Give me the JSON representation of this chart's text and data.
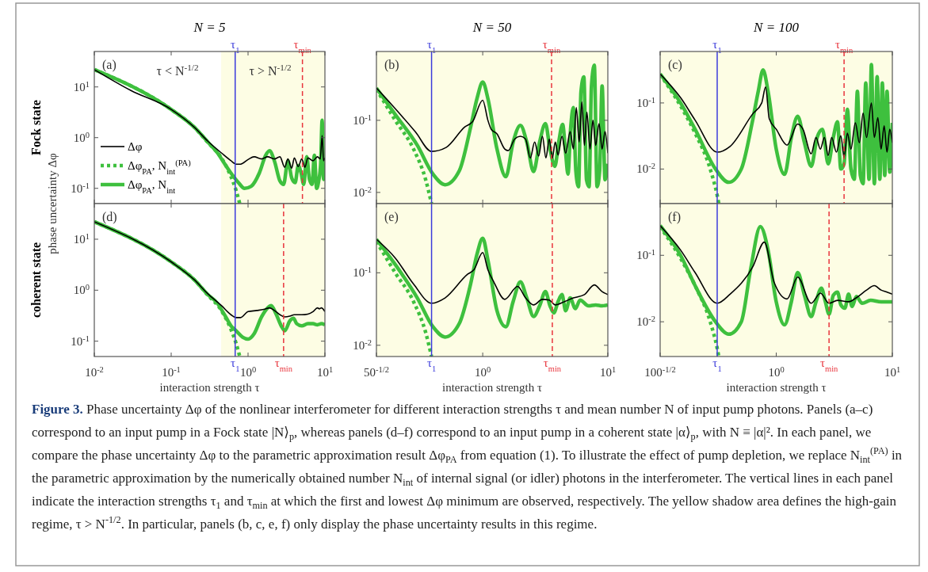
{
  "chart_data": [
    {
      "type": "line",
      "title": "N = 5",
      "ylabel": "Fock state",
      "legend": "bottom left",
      "tick_labels": "y",
      "log": "xy",
      "xlim": [
        0.01,
        10
      ],
      "ylim": [
        0.05,
        50
      ],
      "xticks": [
        0.01,
        0.1,
        1,
        10
      ],
      "yticks": [
        {
          "value": 0.1,
          "label": "10$^{-1}$"
        },
        {
          "value": 1,
          "label": "10$^{0}$"
        },
        {
          "value": 10,
          "label": "10$^{1}$"
        }
      ],
      "annotations": [
        "(a)",
        "τ < N$^{-1/2}$",
        "τ > N$^{-1/2}$",
        "phase uncertainty Δφ"
      ],
      "bands": [
        {
          "axis": "x",
          "from": 0.447,
          "to": 10,
          "color": "#fdfde4"
        }
      ],
      "ref_lines": [
        {
          "axis": "x",
          "value": 0.68,
          "label": "τ$_{1}$",
          "color": "#3b3bdb",
          "line_style": "solid"
        },
        {
          "axis": "x",
          "value": 5.1,
          "label": "τ$_{min}$",
          "color": "#e8343c",
          "line_style": "dashed"
        }
      ],
      "series": [
        {
          "name": "Δφ",
          "color": "#000000",
          "line_style": "solid",
          "x": [
            0.01,
            0.03,
            0.1,
            0.2,
            0.3,
            0.45,
            0.6,
            0.7,
            0.8,
            1.0,
            1.2,
            1.5,
            1.8,
            2.2,
            2.6,
            3,
            3.3,
            3.7,
            4,
            4.5,
            5,
            5.5,
            6,
            7,
            8,
            8.7,
            9.2,
            9.6,
            10
          ],
          "values": [
            22,
            8.5,
            3.6,
            1.6,
            0.85,
            0.5,
            0.35,
            0.3,
            0.3,
            0.37,
            0.42,
            0.38,
            0.42,
            0.38,
            0.42,
            0.26,
            0.38,
            0.25,
            0.4,
            0.27,
            0.38,
            0.26,
            0.4,
            0.35,
            0.42,
            0.38,
            1.1,
            0.35,
            0.4
          ]
        },
        {
          "name": "Δφ$_{PA}$, N$_{int}$$^{(PA)}$",
          "color": "#3ec03e",
          "line_style": "dotted",
          "x": [
            0.01,
            0.1,
            0.2,
            0.3,
            0.45,
            0.6,
            0.7,
            0.78
          ],
          "values": [
            22,
            3.6,
            1.6,
            0.8,
            0.4,
            0.17,
            0.09,
            0.05
          ]
        },
        {
          "name": "Δφ$_{PA}$, N$_{int}$",
          "color": "#3ec03e",
          "line_style": "solid",
          "x": [
            0.01,
            0.1,
            0.2,
            0.3,
            0.4,
            0.5,
            0.6,
            0.75,
            0.9,
            1.1,
            1.4,
            1.7,
            1.9,
            2.2,
            2.6,
            2.9,
            3.3,
            3.7,
            4.1,
            4.5,
            4.9,
            5.3,
            5.8,
            6.3,
            6.8,
            7.3,
            7.8,
            8.3,
            8.8,
            9.2,
            9.6,
            10
          ],
          "values": [
            22,
            3.6,
            1.6,
            0.82,
            0.5,
            0.3,
            0.2,
            0.13,
            0.1,
            0.11,
            0.2,
            0.45,
            0.55,
            0.35,
            0.14,
            0.12,
            0.35,
            0.16,
            0.13,
            0.28,
            0.2,
            0.12,
            0.42,
            0.15,
            0.12,
            0.45,
            0.1,
            0.14,
            0.3,
            2.2,
            0.15,
            0.3
          ]
        }
      ]
    },
    {
      "type": "line",
      "title": "N = 50",
      "tick_labels": "y",
      "log": "xy",
      "xlim": [
        0.1414,
        10
      ],
      "ylim": [
        0.007,
        0.9
      ],
      "xticks": [
        0.1414,
        1,
        10
      ],
      "yticks": [
        {
          "value": 0.01,
          "label": "10$^{-2}$"
        },
        {
          "value": 0.1,
          "label": "10$^{-1}$"
        }
      ],
      "annotations": [
        "(b)"
      ],
      "bands": [
        {
          "axis": "x",
          "from": 0.1414,
          "to": 10,
          "color": "#fdfde4"
        }
      ],
      "ref_lines": [
        {
          "axis": "x",
          "value": 0.39,
          "label": "τ$_{1}$",
          "color": "#3b3bdb",
          "line_style": "solid"
        },
        {
          "axis": "x",
          "value": 3.55,
          "label": "τ$_{min}$",
          "color": "#e8343c",
          "line_style": "dashed"
        }
      ],
      "series": [
        {
          "color": "#000000",
          "line_style": "solid",
          "x": [
            0.1414,
            0.19,
            0.29,
            0.39,
            0.51,
            0.72,
            0.83,
            1.0,
            1.1,
            1.17,
            1.3,
            1.5,
            1.6,
            1.8,
            2.0,
            2.2,
            2.4,
            2.6,
            2.8,
            3.0,
            3.2,
            3.4,
            3.6,
            3.8,
            4.0,
            4.3,
            4.6,
            5.0,
            5.3,
            5.6,
            5.9,
            6.2,
            6.5,
            6.8,
            7.2,
            7.6,
            8.0,
            8.5,
            9.0,
            9.5,
            10
          ],
          "values": [
            0.28,
            0.16,
            0.069,
            0.037,
            0.042,
            0.081,
            0.096,
            0.19,
            0.1,
            0.075,
            0.065,
            0.04,
            0.038,
            0.055,
            0.06,
            0.055,
            0.03,
            0.05,
            0.032,
            0.06,
            0.03,
            0.055,
            0.03,
            0.05,
            0.033,
            0.06,
            0.035,
            0.07,
            0.04,
            0.15,
            0.05,
            0.18,
            0.045,
            0.13,
            0.04,
            0.1,
            0.045,
            0.09,
            0.04,
            0.07,
            0.035
          ]
        },
        {
          "color": "#3ec03e",
          "line_style": "dotted",
          "x": [
            0.1414,
            0.2,
            0.28,
            0.35,
            0.39
          ],
          "values": [
            0.27,
            0.1,
            0.04,
            0.015,
            0.007
          ]
        },
        {
          "color": "#3ec03e",
          "line_style": "solid",
          "x": [
            0.1414,
            0.2,
            0.3,
            0.4,
            0.5,
            0.65,
            0.8,
            0.9,
            1.0,
            1.1,
            1.3,
            1.53,
            1.75,
            2.0,
            2.25,
            2.55,
            2.85,
            3.17,
            3.45,
            3.77,
            4.05,
            4.35,
            4.6,
            4.8,
            5.05,
            5.3,
            5.55,
            5.83,
            6.1,
            6.43,
            6.75,
            7.08,
            7.4,
            7.8,
            8.2,
            8.6,
            9.0,
            9.5,
            10
          ],
          "values": [
            0.28,
            0.12,
            0.045,
            0.018,
            0.0128,
            0.02,
            0.08,
            0.2,
            0.34,
            0.2,
            0.04,
            0.0165,
            0.05,
            0.085,
            0.05,
            0.0195,
            0.05,
            0.09,
            0.04,
            0.023,
            0.05,
            0.088,
            0.035,
            0.018,
            0.08,
            0.15,
            0.02,
            0.012,
            0.25,
            0.4,
            0.015,
            0.012,
            0.3,
            0.58,
            0.012,
            0.02,
            0.3,
            0.015,
            0.025
          ]
        }
      ]
    },
    {
      "type": "line",
      "title": "N = 100",
      "tick_labels": "y",
      "log": "xy",
      "xlim": [
        0.1,
        10
      ],
      "ylim": [
        0.003,
        0.6
      ],
      "xticks": [
        0.1,
        1,
        10
      ],
      "yticks": [
        {
          "value": 0.01,
          "label": "10$^{-2}$"
        },
        {
          "value": 0.1,
          "label": "10$^{-1}$"
        }
      ],
      "annotations": [
        "(c)"
      ],
      "bands": [
        {
          "axis": "x",
          "from": 0.1,
          "to": 10,
          "color": "#fdfde4"
        }
      ],
      "ref_lines": [
        {
          "axis": "x",
          "value": 0.31,
          "label": "τ$_{1}$",
          "color": "#3b3bdb",
          "line_style": "solid"
        },
        {
          "axis": "x",
          "value": 3.84,
          "label": "τ$_{min}$",
          "color": "#e8343c",
          "line_style": "dashed"
        }
      ],
      "series": [
        {
          "color": "#000000",
          "line_style": "solid",
          "x": [
            0.1,
            0.15,
            0.2,
            0.31,
            0.4,
            0.63,
            0.75,
            0.81,
            0.87,
            1.0,
            1.24,
            1.53,
            1.7,
            2.0,
            2.2,
            2.4,
            2.6,
            2.8,
            3.0,
            3.3,
            3.6,
            3.84,
            4.1,
            4.4,
            4.8,
            5.2,
            5.6,
            6.0,
            6.6,
            7.0,
            7.5,
            8.0,
            8.5,
            9,
            9.5,
            10
          ],
          "values": [
            0.275,
            0.12,
            0.055,
            0.018,
            0.022,
            0.069,
            0.1,
            0.174,
            0.058,
            0.04,
            0.023,
            0.048,
            0.04,
            0.017,
            0.03,
            0.02,
            0.03,
            0.016,
            0.03,
            0.018,
            0.032,
            0.015,
            0.035,
            0.02,
            0.05,
            0.025,
            0.07,
            0.03,
            0.1,
            0.03,
            0.06,
            0.02,
            0.045,
            0.018,
            0.04,
            0.025
          ]
        },
        {
          "color": "#3ec03e",
          "line_style": "dotted",
          "x": [
            0.1,
            0.15,
            0.2,
            0.27,
            0.31,
            0.32
          ],
          "values": [
            0.27,
            0.09,
            0.035,
            0.01,
            0.004,
            0.003
          ]
        },
        {
          "color": "#3ec03e",
          "line_style": "solid",
          "x": [
            0.1,
            0.15,
            0.2,
            0.3,
            0.39,
            0.5,
            0.62,
            0.7,
            0.77,
            0.85,
            1.0,
            1.18,
            1.35,
            1.53,
            1.75,
            2.0,
            2.25,
            2.5,
            2.8,
            3.1,
            3.37,
            3.6,
            3.84,
            4.1,
            4.4,
            4.7,
            5.0,
            5.3,
            5.6,
            5.9,
            6.3,
            6.6,
            7.0,
            7.4,
            7.8,
            8.2,
            8.6,
            9.0,
            9.5,
            10
          ],
          "values": [
            0.275,
            0.1,
            0.04,
            0.01,
            0.0063,
            0.01,
            0.05,
            0.15,
            0.316,
            0.15,
            0.02,
            0.0083,
            0.03,
            0.063,
            0.025,
            0.011,
            0.03,
            0.04,
            0.012,
            0.03,
            0.052,
            0.01,
            0.012,
            0.08,
            0.01,
            0.007,
            0.15,
            0.008,
            0.006,
            0.2,
            0.007,
            0.38,
            0.006,
            0.25,
            0.007,
            0.2,
            0.008,
            0.15,
            0.009,
            0.05
          ]
        }
      ]
    },
    {
      "type": "line",
      "ylabel": "coherent state",
      "xlabel": "interaction strength τ",
      "log": "xy",
      "xlim": [
        0.01,
        10
      ],
      "ylim": [
        0.05,
        50
      ],
      "xticks": [
        {
          "value": 0.01,
          "label": "10$^{-2}$"
        },
        {
          "value": 0.1,
          "label": "10$^{-1}$"
        },
        {
          "value": 1,
          "label": "10$^{0}$"
        },
        {
          "value": 10,
          "label": "10$^{1}$"
        }
      ],
      "yticks": [
        {
          "value": 0.1,
          "label": "10$^{-1}$"
        },
        {
          "value": 1,
          "label": "10$^{0}$"
        },
        {
          "value": 10,
          "label": "10$^{1}$"
        }
      ],
      "annotations": [
        "(d)"
      ],
      "bands": [
        {
          "axis": "x",
          "from": 0.447,
          "to": 10,
          "color": "#fdfde4"
        }
      ],
      "ref_lines": [
        {
          "axis": "x",
          "value": 0.68,
          "label": "τ$_{1}$",
          "color": "#3b3bdb",
          "line_style": "solid"
        },
        {
          "axis": "x",
          "value": 2.9,
          "label": "τ$_{min}$",
          "color": "#e8343c",
          "line_style": "dashed"
        }
      ],
      "series": [
        {
          "color": "#000000",
          "line_style": "solid",
          "x": [
            0.01,
            0.1,
            0.2,
            0.3,
            0.45,
            0.6,
            0.7,
            0.8,
            1.0,
            1.3,
            1.6,
            1.9,
            2.2,
            2.6,
            3,
            3.5,
            4,
            5,
            6,
            7,
            8,
            8.5,
            9,
            10
          ],
          "values": [
            22,
            3.6,
            1.6,
            0.85,
            0.5,
            0.33,
            0.29,
            0.29,
            0.38,
            0.4,
            0.42,
            0.45,
            0.4,
            0.33,
            0.3,
            0.31,
            0.33,
            0.33,
            0.34,
            0.38,
            0.45,
            0.43,
            0.45,
            0.38
          ]
        },
        {
          "color": "#3ec03e",
          "line_style": "dotted",
          "x": [
            0.01,
            0.1,
            0.2,
            0.3,
            0.45,
            0.6,
            0.7,
            0.78
          ],
          "values": [
            22,
            3.6,
            1.6,
            0.8,
            0.4,
            0.17,
            0.09,
            0.05
          ]
        },
        {
          "color": "#3ec03e",
          "line_style": "solid",
          "x": [
            0.01,
            0.1,
            0.2,
            0.3,
            0.4,
            0.5,
            0.6,
            0.7,
            0.85,
            1.0,
            1.2,
            1.5,
            1.8,
            2.0,
            2.3,
            2.7,
            3,
            3.5,
            3.9,
            4.3,
            5,
            6,
            7,
            8,
            9,
            10
          ],
          "values": [
            22,
            3.6,
            1.6,
            0.82,
            0.55,
            0.32,
            0.2,
            0.16,
            0.12,
            0.11,
            0.14,
            0.3,
            0.45,
            0.5,
            0.35,
            0.2,
            0.16,
            0.25,
            0.28,
            0.22,
            0.2,
            0.22,
            0.22,
            0.21,
            0.22,
            0.21
          ]
        }
      ]
    },
    {
      "type": "line",
      "xlabel": "interaction strength τ",
      "log": "xy",
      "xlim": [
        0.1414,
        10
      ],
      "ylim": [
        0.007,
        0.9
      ],
      "xticks": [
        {
          "value": 0.1414,
          "label": "50$^{-1/2}$"
        },
        {
          "value": 1,
          "label": "10$^{0}$"
        },
        {
          "value": 10,
          "label": "10$^{1}$"
        }
      ],
      "yticks": [
        {
          "value": 0.01,
          "label": "10$^{-2}$"
        },
        {
          "value": 0.1,
          "label": "10$^{-1}$"
        }
      ],
      "annotations": [
        "(e)"
      ],
      "bands": [
        {
          "axis": "x",
          "from": 0.1414,
          "to": 10,
          "color": "#fdfde4"
        }
      ],
      "ref_lines": [
        {
          "axis": "x",
          "value": 0.39,
          "label": "τ$_{1}$",
          "color": "#3b3bdb",
          "line_style": "solid"
        },
        {
          "axis": "x",
          "value": 3.6,
          "label": "τ$_{min}$",
          "color": "#e8343c",
          "line_style": "dashed"
        }
      ],
      "series": [
        {
          "color": "#000000",
          "line_style": "solid",
          "x": [
            0.1414,
            0.2,
            0.28,
            0.39,
            0.5,
            0.76,
            0.85,
            1.0,
            1.1,
            1.23,
            1.5,
            1.9,
            2.2,
            2.55,
            3.0,
            3.4,
            3.8,
            4.5,
            5.3,
            6.5,
            7.8,
            9,
            10
          ],
          "values": [
            0.29,
            0.16,
            0.07,
            0.038,
            0.045,
            0.096,
            0.11,
            0.19,
            0.11,
            0.074,
            0.043,
            0.065,
            0.045,
            0.036,
            0.043,
            0.042,
            0.036,
            0.04,
            0.045,
            0.05,
            0.068,
            0.055,
            0.05
          ]
        },
        {
          "color": "#3ec03e",
          "line_style": "dotted",
          "x": [
            0.1414,
            0.2,
            0.28,
            0.35,
            0.39
          ],
          "values": [
            0.27,
            0.1,
            0.04,
            0.015,
            0.007
          ]
        },
        {
          "color": "#3ec03e",
          "line_style": "solid",
          "x": [
            0.1414,
            0.2,
            0.3,
            0.4,
            0.5,
            0.65,
            0.8,
            0.9,
            1.0,
            1.1,
            1.3,
            1.53,
            1.75,
            2.0,
            2.25,
            2.55,
            2.85,
            3.17,
            3.45,
            3.7,
            4.0,
            4.3,
            4.6,
            5,
            5.5,
            6,
            7,
            8,
            9,
            10
          ],
          "values": [
            0.29,
            0.13,
            0.045,
            0.018,
            0.013,
            0.02,
            0.07,
            0.18,
            0.3,
            0.15,
            0.03,
            0.018,
            0.04,
            0.075,
            0.045,
            0.025,
            0.035,
            0.055,
            0.035,
            0.028,
            0.04,
            0.05,
            0.03,
            0.045,
            0.032,
            0.042,
            0.035,
            0.036,
            0.035,
            0.036
          ]
        }
      ]
    },
    {
      "type": "line",
      "xlabel": "interaction strength τ",
      "log": "xy",
      "xlim": [
        0.1,
        10
      ],
      "ylim": [
        0.003,
        0.6
      ],
      "xticks": [
        {
          "value": 0.1,
          "label": "100$^{-1/2}$"
        },
        {
          "value": 1,
          "label": "10$^{0}$"
        },
        {
          "value": 10,
          "label": "10$^{1}$"
        }
      ],
      "yticks": [
        {
          "value": 0.01,
          "label": "10$^{-2}$"
        },
        {
          "value": 0.1,
          "label": "10$^{-1}$"
        }
      ],
      "annotations": [
        "(f)",
        "Figure 3.",
        "Phase uncertainty Δφ of the nonlinear interferometer for different interaction strengths τ and mean number N of input pump photons. Panels (a–c) correspond to an input pump in a Fock state |N⟩$_{p}$, whereas panels (d–f) correspond to an input pump in a coherent state |α⟩$_{p}$, with N ≡ |α|². In each panel, we compare the phase uncertainty Δφ to the parametric approximation result Δφ$_{PA}$ from equation (1). To illustrate the effect of pump depletion, we replace N$_{int}$$^{(PA)}$ in the parametric approximation by the numerically obtained number N$_{int}$ of internal signal (or idler) photons in the interferometer. The vertical lines in each panel indicate the interaction strengths τ$_{1}$ and τ$_{min}$ at which the first and lowest Δφ minimum are observed, respectively. The yellow shadow area defines the high-gain regime, τ > N$^{-1/2}$. In particular, panels (b, c, e, f) only display the phase uncertainty results in this regime."
      ],
      "bands": [
        {
          "axis": "x",
          "from": 0.1,
          "to": 10,
          "color": "#fdfde4"
        }
      ],
      "ref_lines": [
        {
          "axis": "x",
          "value": 0.31,
          "label": "τ$_{1}$",
          "color": "#3b3bdb",
          "line_style": "solid"
        },
        {
          "axis": "x",
          "value": 2.85,
          "label": "τ$_{min}$",
          "color": "#e8343c",
          "line_style": "dashed"
        }
      ],
      "series": [
        {
          "color": "#000000",
          "line_style": "solid",
          "x": [
            0.1,
            0.15,
            0.2,
            0.31,
            0.4,
            0.63,
            0.79,
            0.96,
            1.24,
            1.53,
            2.0,
            2.4,
            2.85,
            3.37,
            4.2,
            4.9,
            6,
            7,
            8,
            9,
            10
          ],
          "values": [
            0.28,
            0.12,
            0.055,
            0.019,
            0.026,
            0.068,
            0.158,
            0.039,
            0.022,
            0.047,
            0.019,
            0.027,
            0.019,
            0.021,
            0.02,
            0.023,
            0.03,
            0.035,
            0.03,
            0.028,
            0.026
          ]
        },
        {
          "color": "#3ec03e",
          "line_style": "dotted",
          "x": [
            0.1,
            0.15,
            0.2,
            0.27,
            0.31,
            0.32
          ],
          "values": [
            0.27,
            0.09,
            0.035,
            0.01,
            0.004,
            0.003
          ]
        },
        {
          "color": "#3ec03e",
          "line_style": "solid",
          "x": [
            0.1,
            0.15,
            0.2,
            0.3,
            0.39,
            0.5,
            0.6,
            0.73,
            0.85,
            1.0,
            1.18,
            1.35,
            1.53,
            1.75,
            2.0,
            2.2,
            2.45,
            2.65,
            2.85,
            3.1,
            3.37,
            3.6,
            3.9,
            4.2,
            4.5,
            4.9,
            5.5,
            6.5,
            8,
            10
          ],
          "values": [
            0.28,
            0.1,
            0.035,
            0.01,
            0.0065,
            0.01,
            0.06,
            0.27,
            0.12,
            0.02,
            0.009,
            0.02,
            0.055,
            0.025,
            0.012,
            0.02,
            0.032,
            0.02,
            0.013,
            0.025,
            0.028,
            0.018,
            0.016,
            0.026,
            0.017,
            0.024,
            0.019,
            0.021,
            0.02,
            0.02
          ]
        }
      ]
    }
  ]
}
